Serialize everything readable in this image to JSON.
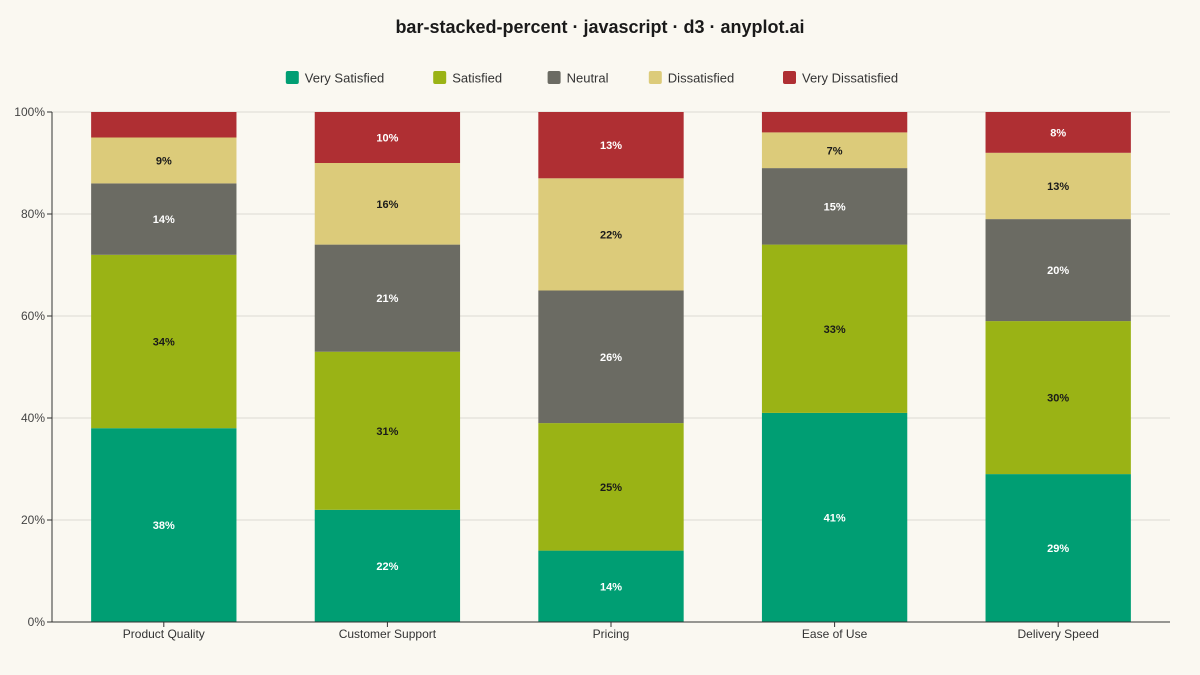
{
  "chart_data": {
    "type": "bar",
    "stacked": "percent",
    "title": "bar-stacked-percent · javascript · d3 · anyplot.ai",
    "categories": [
      "Product Quality",
      "Customer Support",
      "Pricing",
      "Ease of Use",
      "Delivery Speed"
    ],
    "series": [
      {
        "name": "Very Satisfied",
        "color": "#009E73",
        "label_color": "#ffffff",
        "values": [
          38,
          22,
          14,
          41,
          29
        ]
      },
      {
        "name": "Satisfied",
        "color": "#9AB315",
        "label_color": "#1a1a1a",
        "values": [
          34,
          31,
          25,
          33,
          30
        ]
      },
      {
        "name": "Neutral",
        "color": "#6B6B63",
        "label_color": "#ffffff",
        "values": [
          14,
          21,
          26,
          15,
          20
        ]
      },
      {
        "name": "Dissatisfied",
        "color": "#DCCB7A",
        "label_color": "#1a1a1a",
        "values": [
          9,
          16,
          22,
          7,
          13
        ]
      },
      {
        "name": "Very Dissatisfied",
        "color": "#AF2F33",
        "label_color": "#ffffff",
        "values": [
          5,
          10,
          13,
          4,
          8
        ]
      }
    ],
    "data_labels": [
      [
        "38%",
        "34%",
        "14%",
        "9%",
        ""
      ],
      [
        "22%",
        "31%",
        "21%",
        "16%",
        "10%"
      ],
      [
        "14%",
        "25%",
        "26%",
        "22%",
        "13%"
      ],
      [
        "41%",
        "33%",
        "15%",
        "7%",
        ""
      ],
      [
        "29%",
        "30%",
        "20%",
        "13%",
        "8%"
      ]
    ],
    "ylim": [
      0,
      100
    ],
    "y_ticks": [
      "0%",
      "20%",
      "40%",
      "60%",
      "80%",
      "100%"
    ],
    "grid": true,
    "legend_position": "top-center"
  }
}
